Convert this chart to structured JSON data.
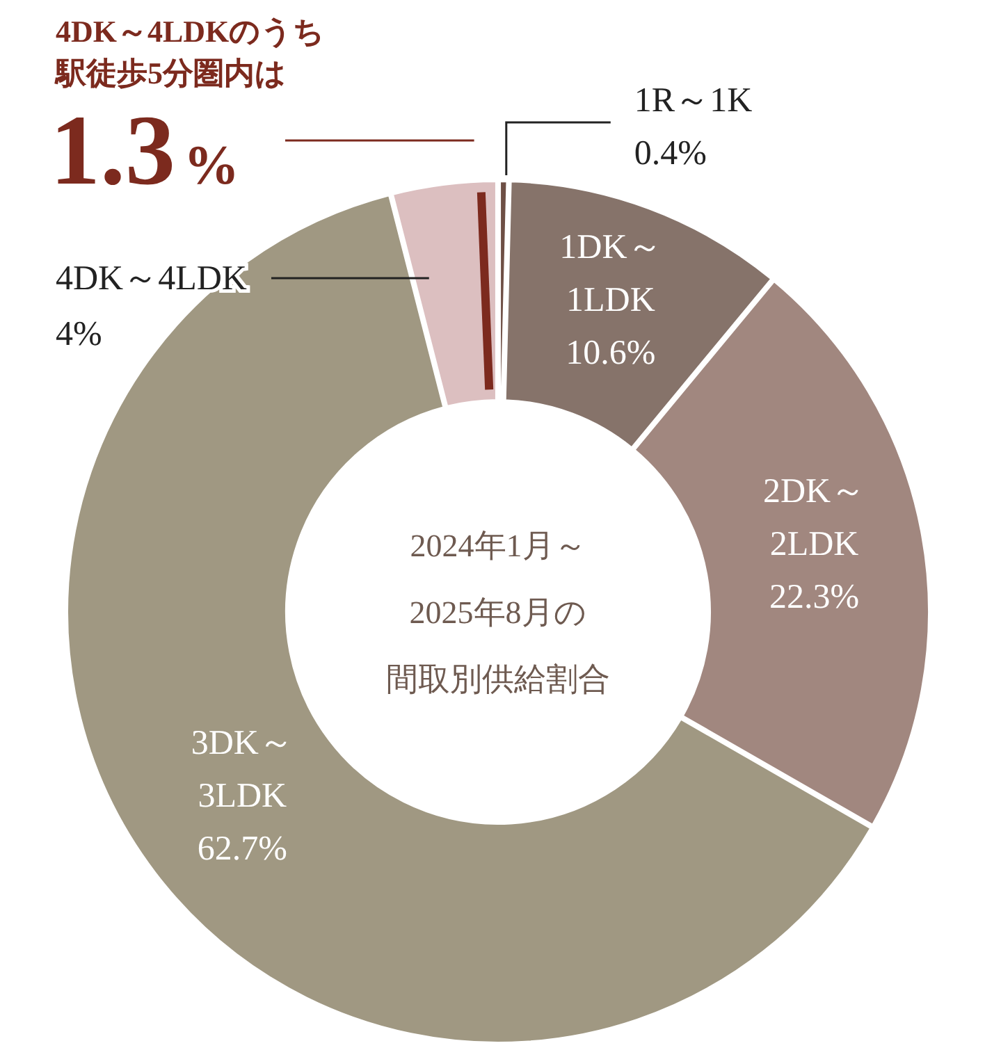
{
  "chart_data": {
    "type": "donut",
    "title": "2024年1月～2025年8月の間取別供給割合",
    "categories": [
      "1R～1K",
      "1DK～1LDK",
      "2DK～2LDK",
      "3DK～3LDK",
      "4DK～4LDK"
    ],
    "values": [
      0.4,
      10.6,
      22.3,
      62.7,
      4
    ],
    "colors": [
      "#6e4f45",
      "#86736a",
      "#a1877f",
      "#a09882",
      "#dcbfc0"
    ],
    "value_labels": [
      "0.4%",
      "10.6%",
      "22.3%",
      "62.7%",
      "4%"
    ],
    "annotations": [
      "4DK～4LDKのうち",
      "駅徒歩5分圏内は",
      "1.3%"
    ]
  }
}
